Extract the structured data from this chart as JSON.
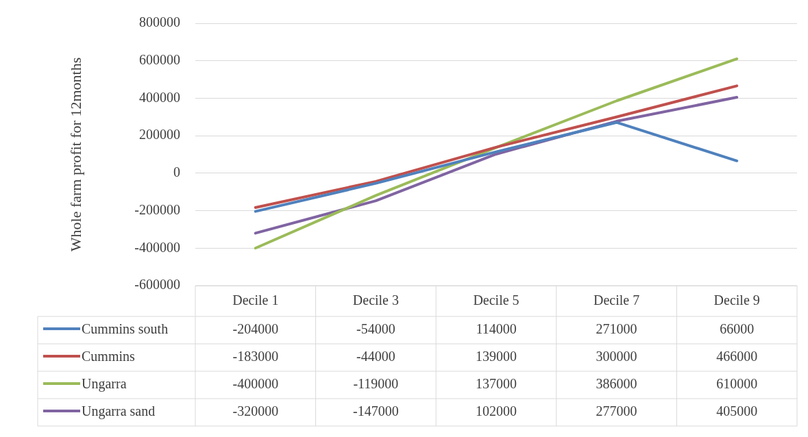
{
  "chart_data": {
    "type": "line",
    "ylabel": "Whole farm profit for 12months",
    "categories": [
      "Decile 1",
      "Decile 3",
      "Decile 5",
      "Decile 7",
      "Decile 9"
    ],
    "series": [
      {
        "name": "Cummins south",
        "color": "#4f81bd",
        "values": [
          -204000,
          -54000,
          114000,
          271000,
          66000
        ]
      },
      {
        "name": "Cummins",
        "color": "#c0504d",
        "values": [
          -183000,
          -44000,
          139000,
          300000,
          466000
        ]
      },
      {
        "name": "Ungarra",
        "color": "#9bbb59",
        "values": [
          -400000,
          -119000,
          137000,
          386000,
          610000
        ]
      },
      {
        "name": "Ungarra sand",
        "color": "#8064a2",
        "values": [
          -320000,
          -147000,
          102000,
          277000,
          405000
        ]
      }
    ],
    "ylim": [
      -600000,
      800000
    ],
    "yticks": [
      -600000,
      -400000,
      -200000,
      0,
      200000,
      400000,
      600000,
      800000
    ],
    "grid": "y",
    "legend": "bottom",
    "data_labels": true,
    "marker": "none",
    "line_style": "solid"
  }
}
